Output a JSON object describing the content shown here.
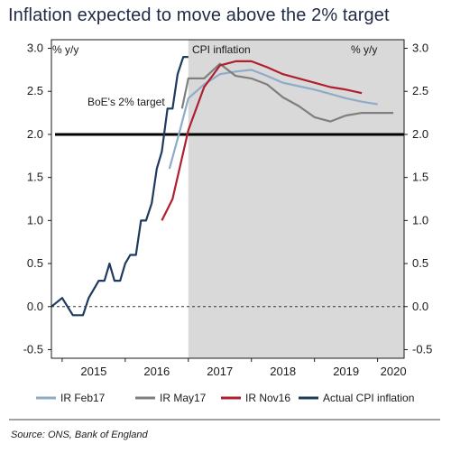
{
  "title": "Inflation expected to move above the 2% target",
  "source": "Source: ONS, Bank of England",
  "chart_data": {
    "type": "line",
    "ylim": [
      -0.6,
      3.1
    ],
    "yticks": [
      "3.0",
      "2.5",
      "2.0",
      "1.5",
      "1.0",
      "0.5",
      "0.0",
      "-0.5"
    ],
    "ytick_values": [
      3.0,
      2.5,
      2.0,
      1.5,
      1.0,
      0.5,
      0.0,
      -0.5
    ],
    "xlim": [
      2014.83,
      2020.42
    ],
    "xticks": [
      "2015",
      "2016",
      "2017",
      "2018",
      "2019",
      "2020"
    ],
    "xtick_positions": [
      2015.5,
      2016.5,
      2017.5,
      2018.5,
      2019.5,
      2020.25
    ],
    "left_unit": "% y/y",
    "right_unit": "% y/y",
    "shaded_label": "CPI inflation",
    "shaded_start": 2017.0,
    "target_label": "BoE's 2% target",
    "target_value": 2.0,
    "grid": false,
    "legend_position": "bottom",
    "series": [
      {
        "name": "IR Feb17",
        "color": "#8eabc8",
        "x": [
          2016.7,
          2016.85,
          2017.0,
          2017.25,
          2017.5,
          2017.75,
          2018.0,
          2018.25,
          2018.5,
          2018.75,
          2019.0,
          2019.25,
          2019.5,
          2019.75,
          2020.0
        ],
        "y": [
          1.6,
          2.0,
          2.42,
          2.58,
          2.7,
          2.73,
          2.75,
          2.68,
          2.6,
          2.56,
          2.52,
          2.47,
          2.42,
          2.38,
          2.35
        ]
      },
      {
        "name": "IR May17",
        "color": "#7f7f7f",
        "x": [
          2016.9,
          2017.0,
          2017.25,
          2017.5,
          2017.75,
          2018.0,
          2018.25,
          2018.5,
          2018.75,
          2019.0,
          2019.25,
          2019.5,
          2019.75,
          2020.0,
          2020.25
        ],
        "y": [
          2.3,
          2.65,
          2.65,
          2.82,
          2.68,
          2.65,
          2.58,
          2.43,
          2.33,
          2.2,
          2.15,
          2.22,
          2.25,
          2.25,
          2.25
        ]
      },
      {
        "name": "IR Nov16",
        "color": "#b01e2f",
        "x": [
          2016.58,
          2016.75,
          2017.0,
          2017.25,
          2017.5,
          2017.75,
          2018.0,
          2018.25,
          2018.5,
          2018.75,
          2019.0,
          2019.25,
          2019.5,
          2019.75
        ],
        "y": [
          1.0,
          1.25,
          2.05,
          2.55,
          2.8,
          2.85,
          2.85,
          2.78,
          2.7,
          2.65,
          2.6,
          2.55,
          2.52,
          2.48
        ]
      },
      {
        "name": "Actual CPI inflation",
        "color": "#1e3a5f",
        "x": [
          2014.83,
          2015.0,
          2015.17,
          2015.33,
          2015.42,
          2015.5,
          2015.58,
          2015.67,
          2015.75,
          2015.83,
          2015.92,
          2016.0,
          2016.08,
          2016.17,
          2016.25,
          2016.33,
          2016.42,
          2016.5,
          2016.58,
          2016.67,
          2016.75,
          2016.83,
          2016.92,
          2017.0
        ],
        "y": [
          0.0,
          0.1,
          -0.1,
          -0.1,
          0.1,
          0.2,
          0.3,
          0.3,
          0.5,
          0.3,
          0.3,
          0.5,
          0.6,
          0.6,
          1.0,
          1.0,
          1.2,
          1.6,
          1.8,
          2.3,
          2.3,
          2.7,
          2.9,
          2.9
        ]
      }
    ]
  }
}
